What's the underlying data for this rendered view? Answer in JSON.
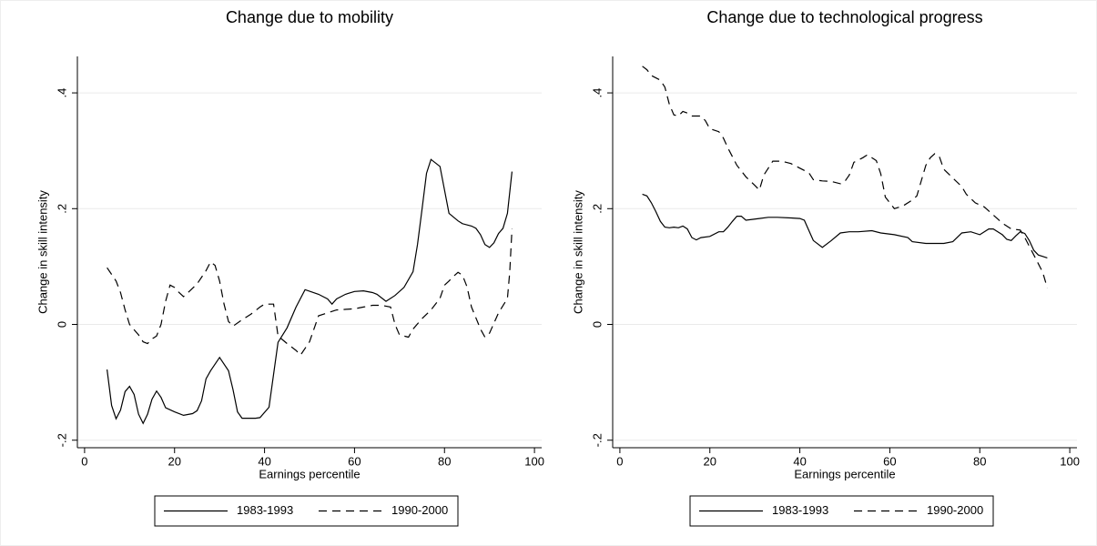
{
  "chart_data": [
    {
      "type": "line",
      "title": "Change due to mobility",
      "xlabel": "Earnings percentile",
      "ylabel": "Change in skill intensity",
      "xlim": [
        -1.6,
        101.6
      ],
      "xticks": [
        0,
        20,
        40,
        60,
        80,
        100
      ],
      "ylim": [
        -0.213,
        0.463
      ],
      "yticks": [
        {
          "value": -0.2,
          "label": "-.2"
        },
        0,
        {
          "value": 0.2,
          "label": ".2"
        },
        {
          "value": 0.4,
          "label": ".4"
        }
      ],
      "grid": true,
      "series": [
        {
          "name": "1983-1993",
          "color": "#000000",
          "dash": "solid",
          "x": [
            5,
            6,
            7,
            8,
            9,
            10,
            11,
            12,
            13,
            14,
            15,
            16,
            17,
            18,
            20,
            22,
            24,
            25,
            26,
            27,
            28,
            30,
            32,
            33,
            34,
            35,
            38,
            39,
            41,
            43,
            45,
            47,
            49,
            52,
            54,
            55,
            56,
            58,
            60,
            62,
            64,
            65,
            67,
            69,
            71,
            73,
            74,
            75,
            76,
            77,
            79,
            81,
            83,
            84,
            86,
            87,
            88,
            89,
            90,
            91,
            92,
            93,
            94,
            95
          ],
          "values": [
            -0.078,
            -0.14,
            -0.163,
            -0.148,
            -0.116,
            -0.107,
            -0.121,
            -0.155,
            -0.171,
            -0.155,
            -0.129,
            -0.115,
            -0.126,
            -0.144,
            -0.151,
            -0.157,
            -0.154,
            -0.149,
            -0.132,
            -0.094,
            -0.08,
            -0.057,
            -0.08,
            -0.113,
            -0.151,
            -0.162,
            -0.162,
            -0.161,
            -0.143,
            -0.031,
            -0.006,
            0.03,
            0.06,
            0.052,
            0.044,
            0.035,
            0.044,
            0.052,
            0.057,
            0.058,
            0.055,
            0.052,
            0.04,
            0.05,
            0.064,
            0.091,
            0.138,
            0.198,
            0.261,
            0.285,
            0.273,
            0.192,
            0.179,
            0.174,
            0.17,
            0.166,
            0.155,
            0.138,
            0.133,
            0.141,
            0.157,
            0.166,
            0.192,
            0.264
          ]
        },
        {
          "name": "1990-2000",
          "color": "#000000",
          "dash": "dashed",
          "x": [
            5,
            7,
            8,
            9,
            10,
            12,
            13,
            14,
            15,
            16,
            17,
            18,
            19,
            20,
            21,
            22,
            23,
            25,
            27,
            28,
            29,
            30,
            31,
            32,
            33,
            35,
            37,
            39,
            40,
            42,
            43,
            45,
            47,
            48,
            50,
            52,
            54,
            56,
            60,
            62,
            64,
            66,
            68,
            69,
            70,
            72,
            73,
            75,
            77,
            79,
            80,
            81,
            82,
            83,
            84,
            85,
            86,
            88,
            89,
            90,
            92,
            94,
            94.5,
            95
          ],
          "values": [
            0.098,
            0.075,
            0.055,
            0.025,
            0.0,
            -0.018,
            -0.03,
            -0.033,
            -0.025,
            -0.02,
            0.0,
            0.04,
            0.068,
            0.064,
            0.055,
            0.048,
            0.055,
            0.07,
            0.093,
            0.108,
            0.102,
            0.075,
            0.035,
            0.005,
            -0.003,
            0.008,
            0.018,
            0.03,
            0.035,
            0.035,
            -0.02,
            -0.033,
            -0.045,
            -0.053,
            -0.03,
            0.015,
            0.02,
            0.025,
            0.027,
            0.03,
            0.033,
            0.033,
            0.03,
            0.0,
            -0.018,
            -0.022,
            -0.008,
            0.01,
            0.025,
            0.045,
            0.068,
            0.075,
            0.083,
            0.09,
            0.085,
            0.065,
            0.03,
            -0.008,
            -0.022,
            -0.015,
            0.02,
            0.045,
            0.09,
            0.165
          ]
        }
      ]
    },
    {
      "type": "line",
      "title": "Change due to technological progress",
      "xlabel": "Earnings percentile",
      "ylabel": "Change in skill intensity",
      "xlim": [
        -1.6,
        101.6
      ],
      "xticks": [
        0,
        20,
        40,
        60,
        80,
        100
      ],
      "ylim": [
        -0.213,
        0.463
      ],
      "yticks": [
        {
          "value": -0.2,
          "label": "-.2"
        },
        0,
        {
          "value": 0.2,
          "label": ".2"
        },
        {
          "value": 0.4,
          "label": ".4"
        }
      ],
      "grid": true,
      "series": [
        {
          "name": "1983-1993",
          "color": "#000000",
          "dash": "solid",
          "x": [
            5,
            6,
            7,
            8,
            9,
            10,
            11,
            12,
            13,
            14,
            15,
            16,
            17,
            18,
            20,
            22,
            23,
            24,
            25,
            26,
            27,
            28,
            29,
            31,
            33,
            35,
            38,
            40,
            41,
            43,
            45,
            47,
            49,
            51,
            53,
            56,
            58,
            61,
            64,
            65,
            68,
            70,
            72,
            74,
            76,
            78,
            80,
            82,
            83,
            85,
            86,
            87,
            88,
            89,
            90,
            91,
            92,
            93,
            95
          ],
          "values": [
            0.225,
            0.222,
            0.21,
            0.195,
            0.178,
            0.168,
            0.167,
            0.168,
            0.167,
            0.17,
            0.165,
            0.15,
            0.146,
            0.15,
            0.152,
            0.16,
            0.16,
            0.168,
            0.178,
            0.187,
            0.187,
            0.18,
            0.181,
            0.183,
            0.185,
            0.185,
            0.184,
            0.183,
            0.18,
            0.145,
            0.133,
            0.145,
            0.158,
            0.16,
            0.16,
            0.162,
            0.158,
            0.155,
            0.15,
            0.143,
            0.14,
            0.14,
            0.14,
            0.143,
            0.158,
            0.16,
            0.155,
            0.165,
            0.165,
            0.155,
            0.147,
            0.145,
            0.153,
            0.16,
            0.157,
            0.145,
            0.128,
            0.12,
            0.115
          ]
        },
        {
          "name": "1990-2000",
          "color": "#000000",
          "dash": "dashed",
          "x": [
            5,
            6,
            7,
            9,
            10,
            11,
            12,
            13,
            14,
            15,
            16,
            18,
            19,
            20,
            22,
            23,
            24,
            26,
            28,
            30,
            31,
            32,
            34,
            36,
            38,
            40,
            42,
            43,
            45,
            47,
            49,
            50,
            51,
            52,
            54,
            55,
            57,
            58,
            59,
            61,
            63,
            65,
            66,
            68,
            69,
            70,
            71,
            72,
            74,
            76,
            77,
            79,
            81,
            82,
            84,
            85,
            87,
            89,
            90,
            92,
            93,
            94,
            95
          ],
          "values": [
            0.446,
            0.44,
            0.43,
            0.422,
            0.41,
            0.38,
            0.362,
            0.36,
            0.368,
            0.365,
            0.36,
            0.36,
            0.352,
            0.338,
            0.333,
            0.322,
            0.305,
            0.275,
            0.255,
            0.24,
            0.232,
            0.258,
            0.282,
            0.282,
            0.278,
            0.27,
            0.262,
            0.25,
            0.248,
            0.247,
            0.243,
            0.247,
            0.258,
            0.28,
            0.288,
            0.293,
            0.283,
            0.26,
            0.22,
            0.2,
            0.205,
            0.215,
            0.222,
            0.275,
            0.288,
            0.295,
            0.29,
            0.268,
            0.253,
            0.238,
            0.225,
            0.21,
            0.203,
            0.196,
            0.182,
            0.175,
            0.165,
            0.163,
            0.15,
            0.12,
            0.105,
            0.09,
            0.063
          ]
        }
      ]
    }
  ]
}
